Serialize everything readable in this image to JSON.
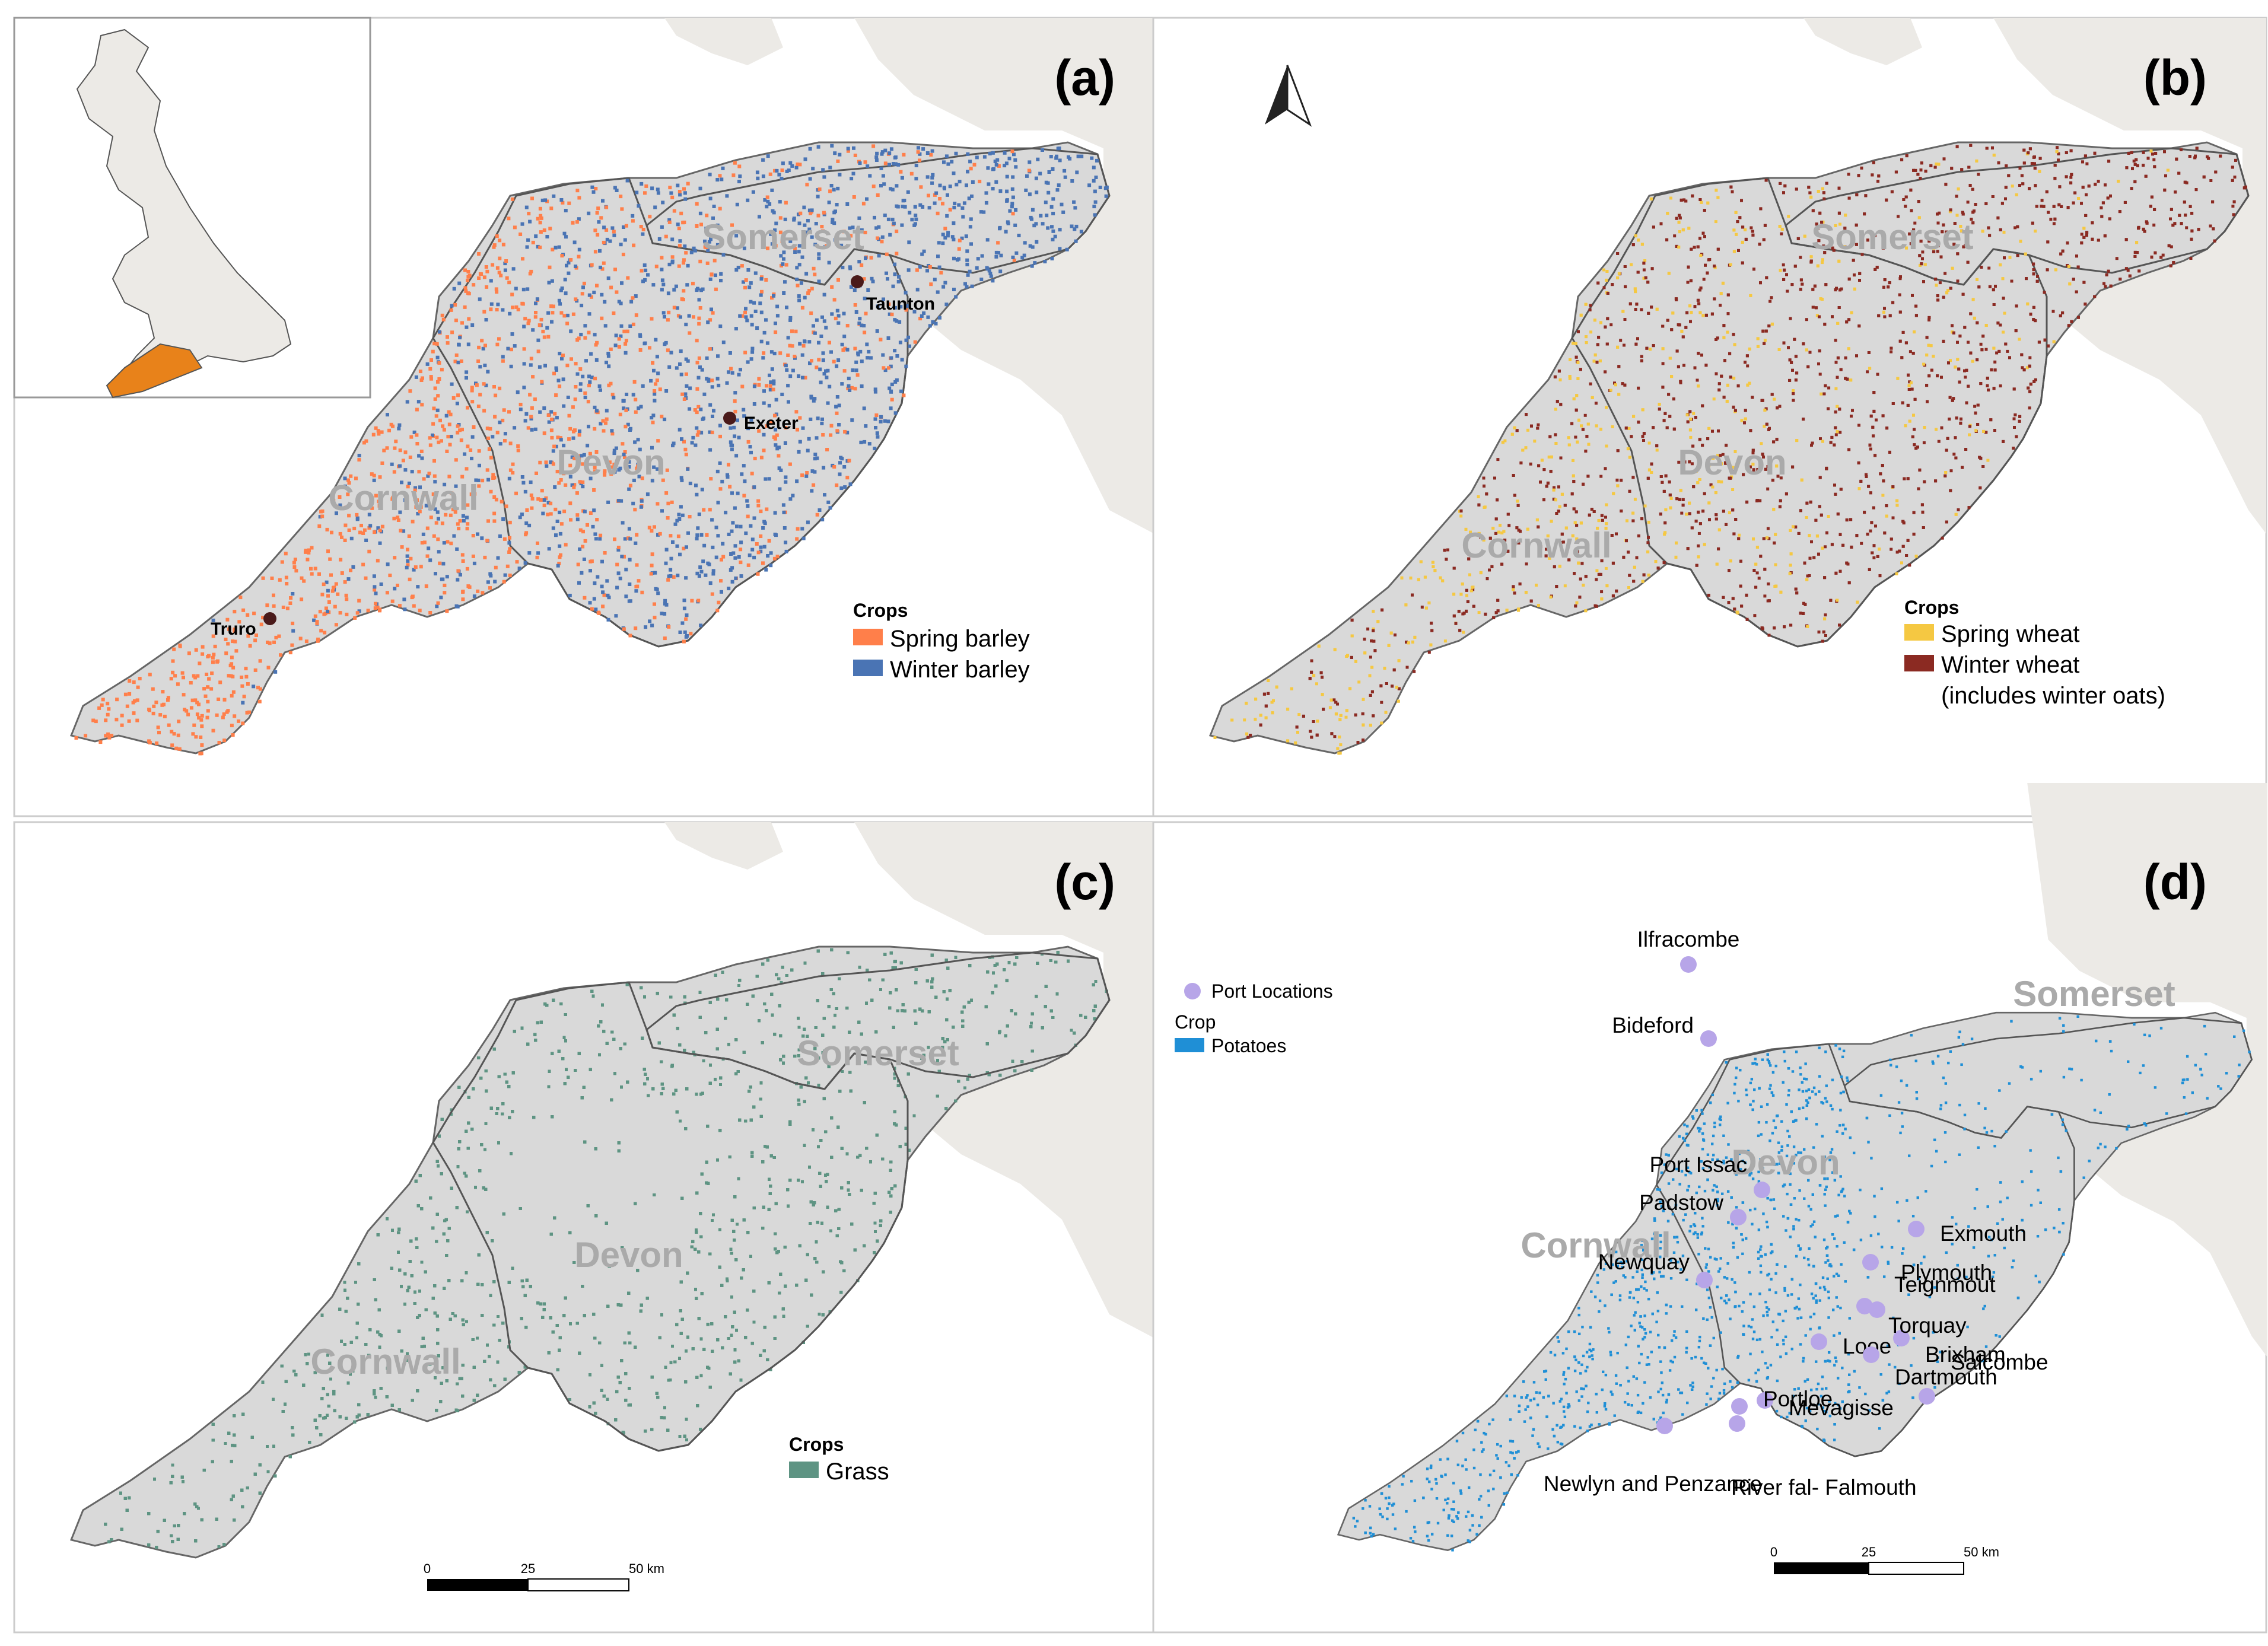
{
  "colors": {
    "sea": "#ffffff",
    "land": "#eceae6",
    "region": "#d9d9d9",
    "border": "#666666",
    "spring_barley": "#ff7f4a",
    "winter_barley": "#4a74b4",
    "spring_wheat": "#f5c842",
    "winter_wheat": "#8b2a22",
    "grass": "#5e9483",
    "potatoes": "#1f8fd6",
    "port": "#b7a5e8",
    "inset_highlight": "#e8821a"
  },
  "panels": [
    {
      "letter": "(a)",
      "counties": [
        "Somerset",
        "Devon",
        "Cornwall"
      ],
      "cities": [
        "Taunton",
        "Exeter",
        "Truro"
      ],
      "legend": {
        "title": "Crops",
        "items": [
          "Spring barley",
          "Winter barley"
        ]
      },
      "inset": {
        "highlight": "South West England",
        "icons": [
          "uk-map-icon"
        ]
      }
    },
    {
      "letter": "(b)",
      "counties": [
        "Somerset",
        "Devon",
        "Cornwall"
      ],
      "north_arrow": "north-arrow-icon",
      "legend": {
        "title": "Crops",
        "items": [
          "Spring wheat",
          "Winter wheat",
          "(includes winter oats)"
        ]
      }
    },
    {
      "letter": "(c)",
      "counties": [
        "Somerset",
        "Devon",
        "Cornwall"
      ],
      "legend": {
        "title": "Crops",
        "items": [
          "Grass"
        ]
      },
      "scale_bar": {
        "labels": [
          "0",
          "25",
          "50 km"
        ]
      }
    },
    {
      "letter": "(d)",
      "counties": [
        "Somerset",
        "Devon",
        "Cornwall"
      ],
      "legend": {
        "port_title": "Port Locations",
        "crop_title": "Crop",
        "items": [
          "Potatoes"
        ]
      },
      "ports": [
        "Ilfracombe",
        "Bideford",
        "Port Issac",
        "Padstow",
        "Newquay",
        "Mevagisse",
        "Portloe",
        "Looe",
        "Plymouth",
        "Salcombe",
        "Dartmouth",
        "Brixham",
        "Torquay",
        "Teignmout",
        "Exmouth",
        "River fal- Falmouth",
        "Newlyn and Penzance"
      ],
      "scale_bar": {
        "labels": [
          "0",
          "25",
          "50 km"
        ]
      }
    }
  ]
}
